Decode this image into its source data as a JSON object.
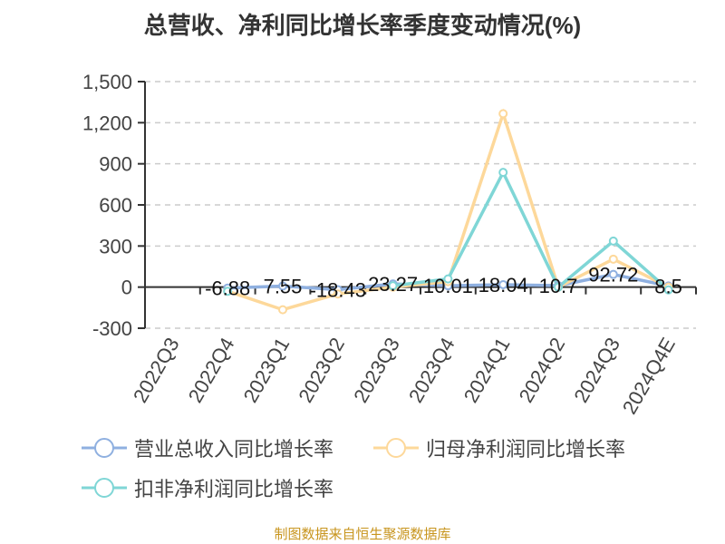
{
  "chart_data": {
    "type": "line",
    "title": "总营收、净利同比增长率季度变动情况(%)",
    "categories": [
      "2022Q3",
      "2022Q4",
      "2023Q1",
      "2023Q2",
      "2023Q3",
      "2023Q4",
      "2024Q1",
      "2024Q2",
      "2024Q3",
      "2024Q4E"
    ],
    "ylim": [
      -300,
      1500
    ],
    "yticks": [
      -300,
      0,
      300,
      600,
      900,
      1200,
      1500
    ],
    "ytick_labels": [
      "-300",
      "0",
      "300",
      "600",
      "900",
      "1,200",
      "1,500"
    ],
    "grid": true,
    "legend_position": "bottom",
    "series": [
      {
        "name": "营业总收入同比增长率",
        "color": "#8fb0e0",
        "values": [
          null,
          -6.88,
          7.55,
          -18.43,
          23.27,
          10.01,
          18.04,
          10.7,
          92.72,
          8.5
        ],
        "labels": [
          "",
          "-6.88",
          "7.55",
          "-18.43",
          "23.27",
          "10.01",
          "18.04",
          "10.7",
          "92.72",
          "8.5"
        ]
      },
      {
        "name": "归母净利润同比增长率",
        "color": "#fdd89a",
        "values": [
          null,
          -30,
          -165,
          -50,
          0,
          40,
          1266,
          0,
          204,
          0
        ]
      },
      {
        "name": "扣非净利润同比增长率",
        "color": "#7fd6d6",
        "values": [
          null,
          -30,
          null,
          null,
          10,
          60,
          837,
          0,
          336,
          -20
        ]
      }
    ]
  },
  "source": "制图数据来自恒生聚源数据库"
}
